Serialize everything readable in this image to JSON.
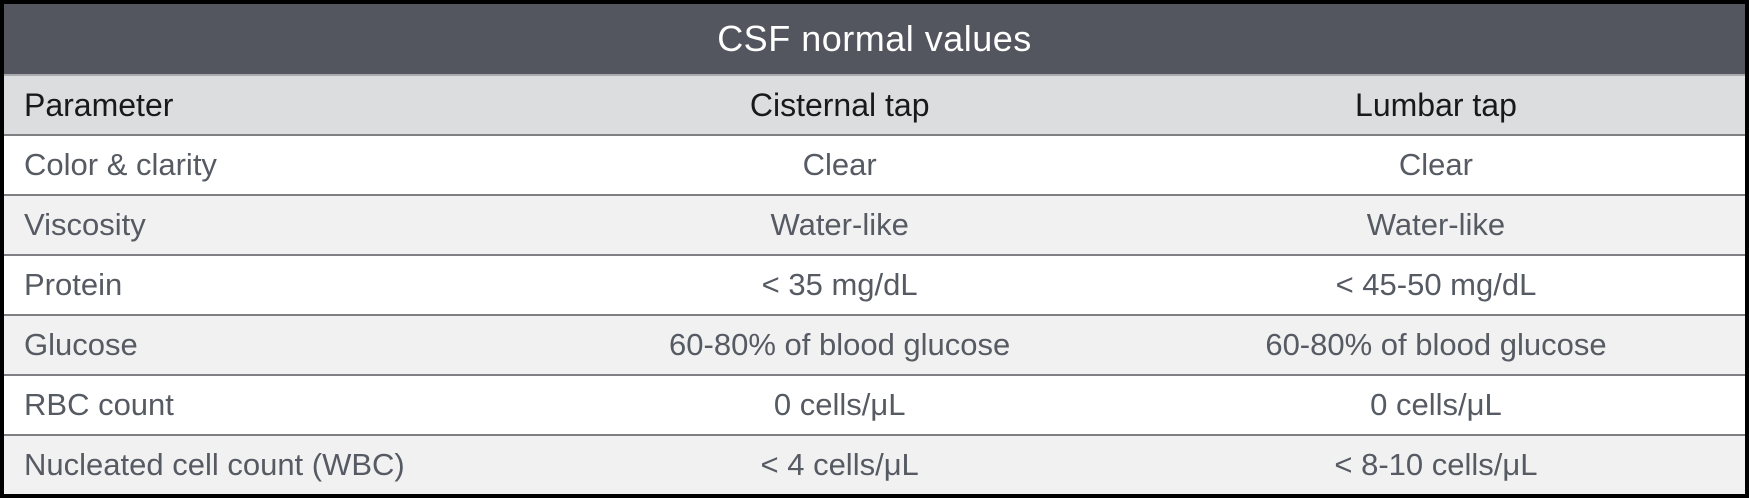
{
  "chart_data": {
    "type": "table",
    "title": "CSF normal values",
    "columns": [
      "Parameter",
      "Cisternal tap",
      "Lumbar tap"
    ],
    "rows": [
      [
        "Color & clarity",
        "Clear",
        "Clear"
      ],
      [
        "Viscosity",
        "Water-like",
        "Water-like"
      ],
      [
        "Protein",
        "< 35 mg/dL",
        "< 45-50 mg/dL"
      ],
      [
        "Glucose",
        "60-80% of blood glucose",
        "60-80% of blood glucose"
      ],
      [
        "RBC count",
        "0 cells/μL",
        "0 cells/μL"
      ],
      [
        "Nucleated cell count (WBC)",
        "< 4 cells/μL",
        "< 8-10 cells/μL"
      ]
    ],
    "layout_hints": {
      "first_column_align": "left",
      "value_columns_align": "center",
      "zebra_striping": true
    }
  },
  "colors": {
    "title_bar_bg": "#53565E",
    "title_text": "#FFFFFF",
    "header_bg": "#DCDDDE",
    "header_text": "#18191B",
    "row_bg": "#FFFFFF",
    "row_alt_bg": "#F1F1F2",
    "body_text": "#565A62",
    "divider": "#7E8084",
    "title_divider": "#AAABAE",
    "outer_border": "#000000"
  }
}
